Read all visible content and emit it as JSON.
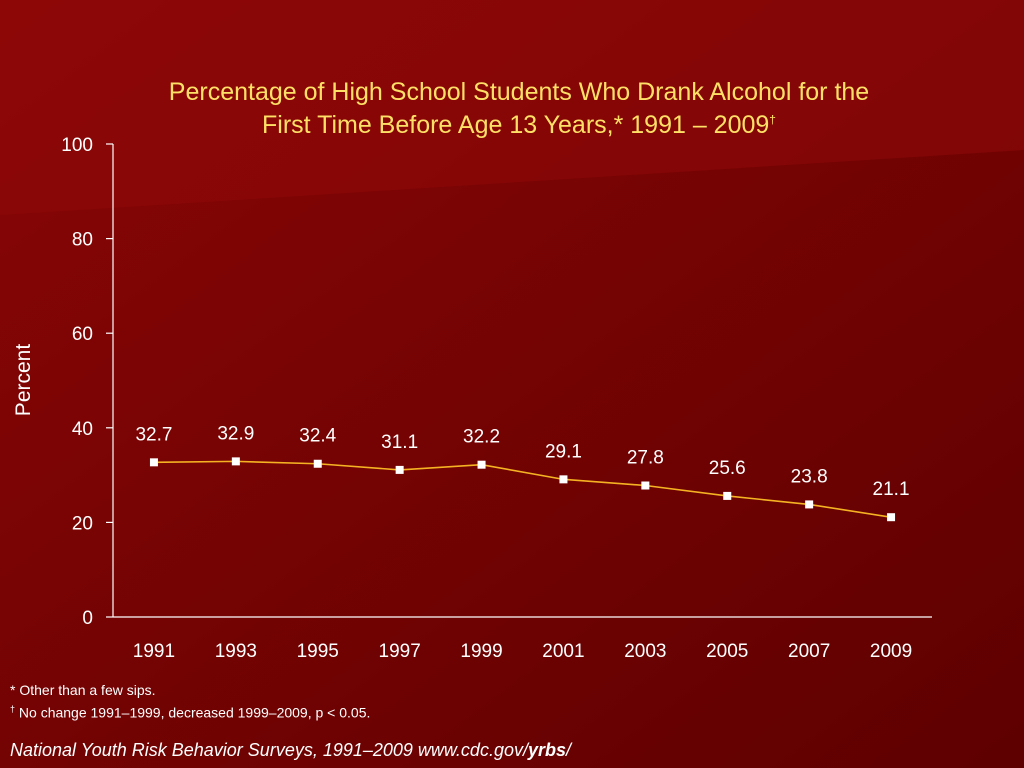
{
  "slide": {
    "title_line1": "Percentage of High School Students Who Drank Alcohol for the",
    "title_line2": "First Time Before Age 13 Years,* 1991 – 2009",
    "title_mark": "†",
    "footnote1": "* Other than a few sips.",
    "footnote2_mark": "†",
    "footnote2": " No change 1991–1999, decreased 1999–2009, p < 0.05.",
    "source_prefix": "National Youth Risk Behavior Surveys, 1991–2009  www.cdc.gov/",
    "source_bold": "yrbs",
    "source_suffix": "/"
  },
  "chart_data": {
    "type": "line",
    "categories": [
      "1991",
      "1993",
      "1995",
      "1997",
      "1999",
      "2001",
      "2003",
      "2005",
      "2007",
      "2009"
    ],
    "series": [
      {
        "values": [
          32.7,
          32.9,
          32.4,
          31.1,
          32.2,
          29.1,
          27.8,
          25.6,
          23.8,
          21.1
        ]
      }
    ],
    "data_labels": [
      "32.7",
      "32.9",
      "32.4",
      "31.1",
      "32.2",
      "29.1",
      "27.8",
      "25.6",
      "23.8",
      "21.1"
    ],
    "ylabel": "Percent",
    "ylim": [
      0,
      100
    ],
    "yticks": [
      "0",
      "20",
      "40",
      "60",
      "80",
      "100"
    ],
    "colors": {
      "line": "#f5b323",
      "marker": "#ffffff",
      "axis": "#ffffff",
      "text": "#ffffff",
      "title": "#ffe066"
    }
  }
}
